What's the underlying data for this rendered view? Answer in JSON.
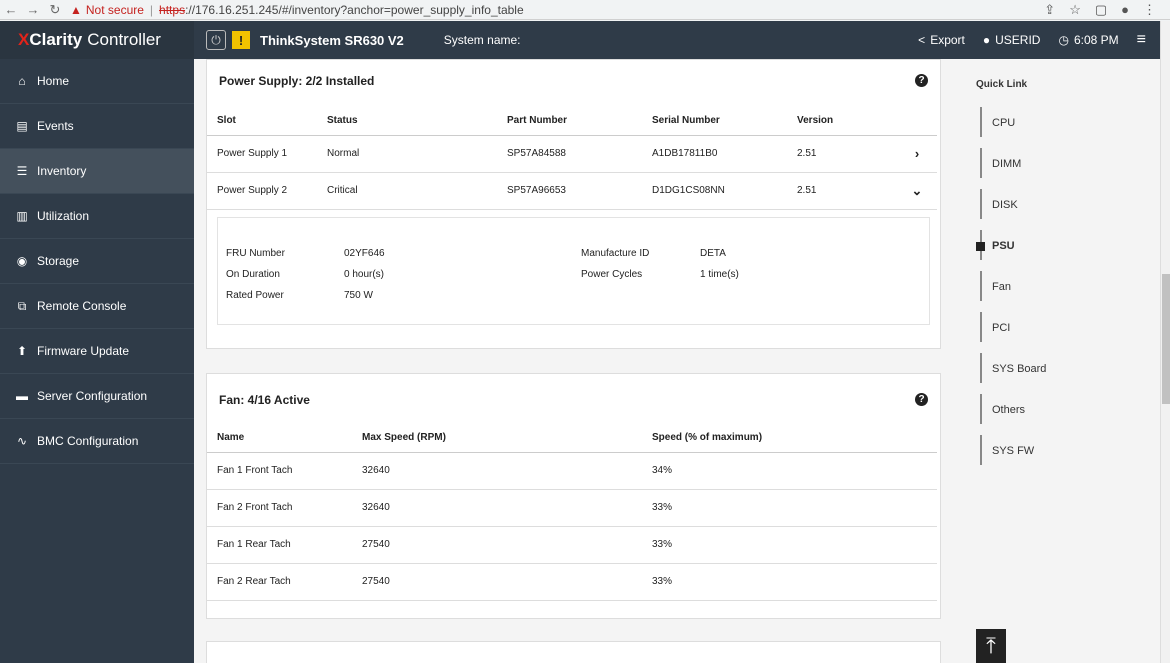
{
  "browser": {
    "not_secure": "Not secure",
    "url_scheme": "https",
    "url_rest": "://176.16.251.245/#/inventory?anchor=power_supply_info_table"
  },
  "brand": {
    "x": "X",
    "clarity": "Clarity",
    "controller": "Controller"
  },
  "sidebar": {
    "items": [
      {
        "label": "Home",
        "icon": "home-icon"
      },
      {
        "label": "Events",
        "icon": "events-icon"
      },
      {
        "label": "Inventory",
        "icon": "list-icon"
      },
      {
        "label": "Utilization",
        "icon": "bar-chart-icon"
      },
      {
        "label": "Storage",
        "icon": "storage-icon"
      },
      {
        "label": "Remote Console",
        "icon": "external-icon"
      },
      {
        "label": "Firmware Update",
        "icon": "upload-icon"
      },
      {
        "label": "Server Configuration",
        "icon": "server-icon"
      },
      {
        "label": "BMC Configuration",
        "icon": "pulse-icon"
      }
    ],
    "active_index": 2
  },
  "topbar": {
    "model": "ThinkSystem SR630 V2",
    "system_name_label": "System name:",
    "export": "Export",
    "user": "USERID",
    "time": "6:08 PM"
  },
  "psu": {
    "title": "Power Supply: 2/2 Installed",
    "headers": [
      "Slot",
      "Status",
      "Part Number",
      "Serial Number",
      "Version"
    ],
    "rows": [
      {
        "slot": "Power Supply 1",
        "status": "Normal",
        "part": "SP57A84588",
        "serial": "A1DB17811B0",
        "version": "2.51",
        "chevron": "›"
      },
      {
        "slot": "Power Supply 2",
        "status": "Critical",
        "part": "SP57A96653",
        "serial": "D1DG1CS08NN",
        "version": "2.51",
        "chevron": "⌄"
      }
    ],
    "detail": {
      "fru_label": "FRU Number",
      "fru_value": "02YF646",
      "mfg_label": "Manufacture ID",
      "mfg_value": "DETA",
      "on_label": "On Duration",
      "on_value": "0 hour(s)",
      "cycles_label": "Power Cycles",
      "cycles_value": "1 time(s)",
      "rated_label": "Rated Power",
      "rated_value": "750 W"
    }
  },
  "fan": {
    "title": "Fan: 4/16 Active",
    "headers": [
      "Name",
      "Max Speed (RPM)",
      "Speed (% of maximum)"
    ],
    "rows": [
      {
        "name": "Fan 1 Front Tach",
        "max": "32640",
        "speed": "34%"
      },
      {
        "name": "Fan 2 Front Tach",
        "max": "32640",
        "speed": "33%"
      },
      {
        "name": "Fan 1 Rear Tach",
        "max": "27540",
        "speed": "33%"
      },
      {
        "name": "Fan 2 Rear Tach",
        "max": "27540",
        "speed": "33%"
      }
    ]
  },
  "quick_link": {
    "title": "Quick Link",
    "items": [
      "CPU",
      "DIMM",
      "DISK",
      "PSU",
      "Fan",
      "PCI",
      "SYS Board",
      "Others",
      "SYS FW"
    ],
    "active_index": 3
  }
}
